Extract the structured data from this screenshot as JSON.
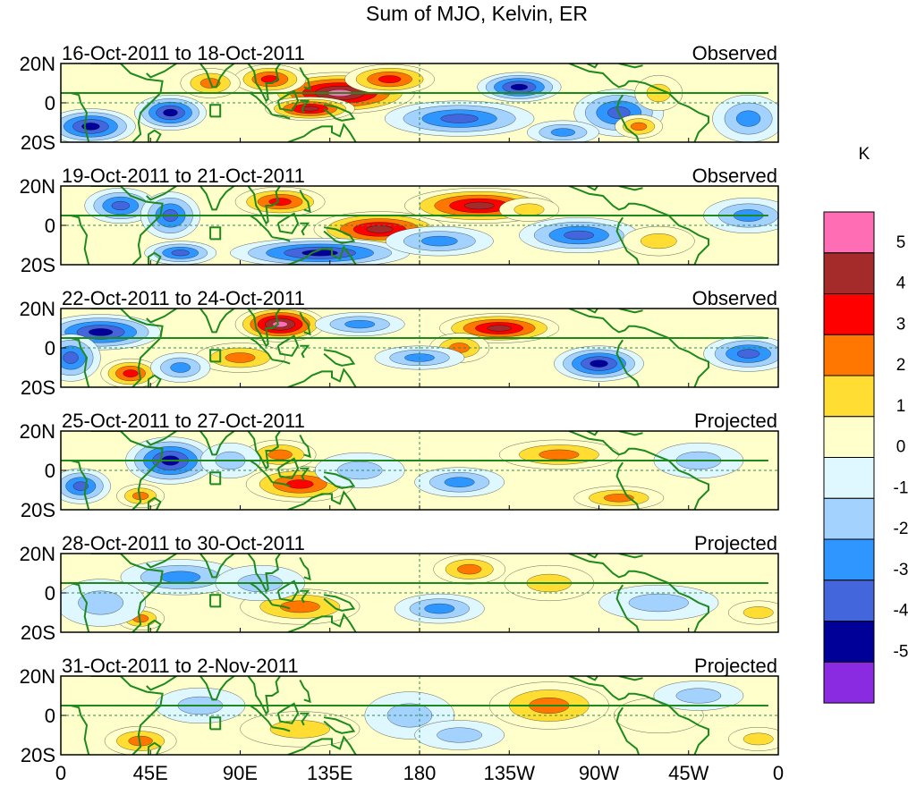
{
  "chart_data": {
    "type": "heatmap",
    "title": "Sum of MJO, Kelvin, ER",
    "units": "K",
    "x_ticks": [
      "0",
      "45E",
      "90E",
      "135E",
      "180",
      "135W",
      "90W",
      "45W",
      "0"
    ],
    "y_ticks": [
      "20N",
      "0",
      "20S"
    ],
    "lon_range": [
      0,
      360
    ],
    "lat_range": [
      -20,
      20
    ],
    "colorbar": {
      "labels": [
        "5",
        "4",
        "3",
        "2",
        "1",
        "0",
        "-1",
        "-2",
        "-3",
        "-4",
        "-5"
      ],
      "levels": [
        5,
        4,
        3,
        2,
        1,
        0,
        -1,
        -2,
        -3,
        -4,
        -5
      ],
      "colors": [
        "#ff6eb4",
        "#a52a2a",
        "#ff0000",
        "#ff7700",
        "#ffdd33",
        "#ffffcc",
        "#dff7ff",
        "#a3d2ff",
        "#2f96ff",
        "#4466dd",
        "#000099",
        "#8a2be2"
      ]
    },
    "panels": [
      {
        "period": "16-Oct-2011 to 18-Oct-2011",
        "status": "Observed",
        "blobs": [
          [
            140,
            5,
            25,
            7,
            5.5
          ],
          [
            125,
            -3,
            15,
            4,
            4.5
          ],
          [
            105,
            12,
            12,
            5,
            3.2
          ],
          [
            75,
            10,
            10,
            5,
            3
          ],
          [
            165,
            12,
            15,
            5,
            3.5
          ],
          [
            230,
            8,
            14,
            5,
            -5
          ],
          [
            15,
            -12,
            15,
            6,
            -4.5
          ],
          [
            55,
            -5,
            12,
            6,
            -4.2
          ],
          [
            200,
            -8,
            25,
            6,
            -3.5
          ],
          [
            280,
            -5,
            15,
            8,
            -3.5
          ],
          [
            252,
            -15,
            12,
            4,
            -3
          ],
          [
            345,
            -8,
            12,
            8,
            -3
          ],
          [
            290,
            -12,
            8,
            4,
            3
          ],
          [
            300,
            5,
            8,
            6,
            1.5
          ]
        ]
      },
      {
        "period": "19-Oct-2011 to 21-Oct-2011",
        "status": "Observed",
        "blobs": [
          [
            160,
            -2,
            22,
            6,
            5
          ],
          [
            210,
            10,
            25,
            6,
            5
          ],
          [
            110,
            12,
            15,
            5,
            3.5
          ],
          [
            30,
            10,
            12,
            6,
            -4
          ],
          [
            55,
            5,
            10,
            8,
            -3.5
          ],
          [
            130,
            -14,
            30,
            5,
            -4.5
          ],
          [
            190,
            -8,
            18,
            5,
            -3
          ],
          [
            260,
            -5,
            20,
            6,
            -3.5
          ],
          [
            60,
            -14,
            12,
            4,
            -3.5
          ],
          [
            300,
            -8,
            12,
            5,
            1.5
          ],
          [
            345,
            5,
            15,
            6,
            -2.5
          ],
          [
            235,
            8,
            10,
            4,
            2
          ]
        ]
      },
      {
        "period": "22-Oct-2011 to 24-Oct-2011",
        "status": "Observed",
        "blobs": [
          [
            110,
            12,
            15,
            6,
            5.5
          ],
          [
            220,
            10,
            20,
            5,
            5
          ],
          [
            35,
            -13,
            10,
            5,
            3.5
          ],
          [
            90,
            -5,
            15,
            5,
            3
          ],
          [
            200,
            0,
            10,
            5,
            3
          ],
          [
            20,
            8,
            20,
            6,
            -4.5
          ],
          [
            5,
            -5,
            10,
            8,
            -4
          ],
          [
            270,
            -8,
            15,
            6,
            -4.5
          ],
          [
            345,
            -3,
            15,
            6,
            -4
          ],
          [
            150,
            12,
            15,
            4,
            -3
          ],
          [
            60,
            -10,
            10,
            5,
            -3
          ],
          [
            180,
            -5,
            15,
            4,
            -2.5
          ]
        ]
      },
      {
        "period": "25-Oct-2011 to 27-Oct-2011",
        "status": "Projected",
        "blobs": [
          [
            55,
            5,
            15,
            8,
            -4.5
          ],
          [
            10,
            -8,
            10,
            6,
            -3.5
          ],
          [
            120,
            -7,
            18,
            6,
            3.5
          ],
          [
            110,
            8,
            12,
            5,
            2.5
          ],
          [
            250,
            8,
            20,
            5,
            2.5
          ],
          [
            280,
            -14,
            15,
            4,
            3
          ],
          [
            40,
            -13,
            8,
            4,
            2.5
          ],
          [
            200,
            -6,
            15,
            5,
            -3
          ],
          [
            85,
            5,
            10,
            6,
            -2
          ],
          [
            150,
            0,
            15,
            6,
            -1.5
          ],
          [
            320,
            5,
            15,
            6,
            -1.5
          ]
        ]
      },
      {
        "period": "28-Oct-2011 to 30-Oct-2011",
        "status": "Projected",
        "blobs": [
          [
            60,
            8,
            20,
            6,
            -3
          ],
          [
            40,
            -13,
            8,
            4,
            3
          ],
          [
            120,
            -7,
            20,
            6,
            2.5
          ],
          [
            205,
            12,
            12,
            5,
            2.5
          ],
          [
            245,
            5,
            15,
            6,
            1.5
          ],
          [
            190,
            -8,
            15,
            5,
            -2.5
          ],
          [
            20,
            -5,
            15,
            8,
            -1.5
          ],
          [
            100,
            5,
            15,
            6,
            -1.5
          ],
          [
            300,
            -5,
            20,
            6,
            -1.5
          ],
          [
            350,
            -10,
            10,
            4,
            1.5
          ]
        ]
      },
      {
        "period": "31-Oct-2011 to 2-Nov-2011",
        "status": "Projected",
        "blobs": [
          [
            245,
            5,
            20,
            8,
            3
          ],
          [
            40,
            -13,
            12,
            5,
            3
          ],
          [
            120,
            -7,
            20,
            6,
            2
          ],
          [
            175,
            0,
            15,
            8,
            -2
          ],
          [
            70,
            5,
            15,
            6,
            -1.5
          ],
          [
            200,
            -10,
            15,
            5,
            -1.5
          ],
          [
            300,
            0,
            15,
            6,
            1
          ],
          [
            320,
            10,
            15,
            5,
            -1.5
          ],
          [
            350,
            -12,
            10,
            4,
            1.5
          ]
        ]
      }
    ]
  }
}
